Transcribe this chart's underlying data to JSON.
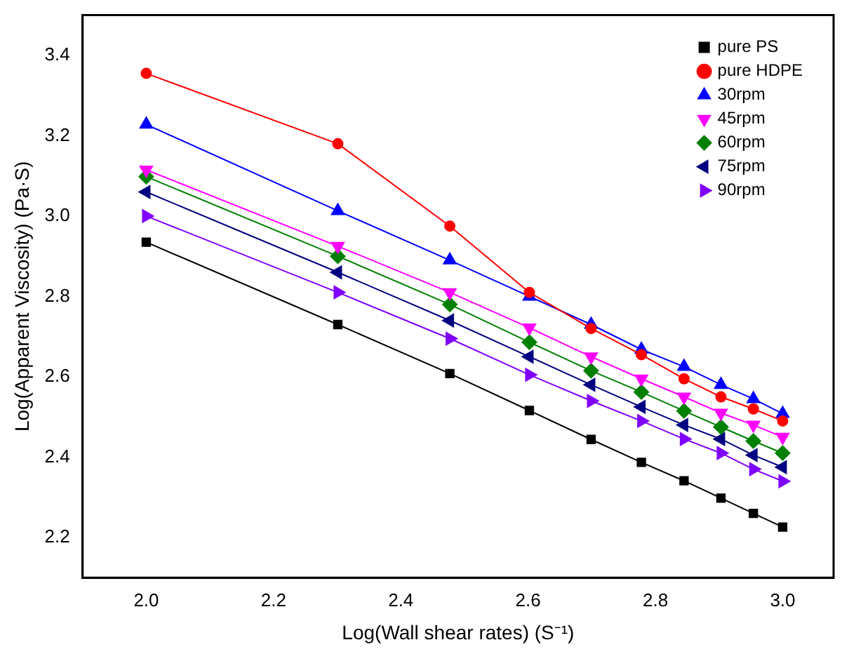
{
  "chart_data": {
    "type": "line",
    "xlabel": "Log(Wall shear rates) (S⁻¹)",
    "ylabel": "Log(Apparent Viscosity) (Pa·S)",
    "x": [
      2.0,
      2.301,
      2.477,
      2.602,
      2.699,
      2.778,
      2.845,
      2.903,
      2.954,
      3.0
    ],
    "xlim": [
      1.9,
      3.08
    ],
    "xticks": [
      {
        "value": 2,
        "label": "2.0"
      },
      2.2,
      2.4,
      2.6,
      2.8,
      {
        "value": 3,
        "label": "3.0"
      }
    ],
    "ylim": [
      2.1,
      3.5
    ],
    "yticks": [
      2.2,
      2.4,
      2.6,
      2.8,
      {
        "value": 3,
        "label": "3.0"
      },
      3.2,
      3.4
    ],
    "grid": false,
    "legend": "top right",
    "line_style": "solid",
    "series": [
      {
        "name": "pure PS",
        "color": "#000000",
        "marker": "square",
        "values": [
          2.935,
          2.73,
          2.608,
          2.516,
          2.444,
          2.387,
          2.341,
          2.298,
          2.26,
          2.226
        ]
      },
      {
        "name": "pure HDPE",
        "color": "#ff0000",
        "marker": "circle",
        "values": [
          3.355,
          3.18,
          2.975,
          2.81,
          2.72,
          2.655,
          2.595,
          2.55,
          2.52,
          2.49
        ]
      },
      {
        "name": "30rpm",
        "color": "#0000ff",
        "marker": "triangle",
        "values": [
          3.228,
          3.013,
          2.89,
          2.8,
          2.73,
          2.668,
          2.625,
          2.58,
          2.545,
          2.508
        ]
      },
      {
        "name": "45rpm",
        "color": "#ff00ff",
        "marker": "triangle-down",
        "values": [
          3.115,
          2.925,
          2.81,
          2.722,
          2.65,
          2.595,
          2.55,
          2.51,
          2.48,
          2.45
        ]
      },
      {
        "name": "60rpm",
        "color": "#008000",
        "marker": "diamond",
        "values": [
          3.098,
          2.9,
          2.78,
          2.686,
          2.615,
          2.562,
          2.515,
          2.475,
          2.44,
          2.41
        ]
      },
      {
        "name": "75rpm",
        "color": "#000080",
        "marker": "triangle-left",
        "values": [
          3.06,
          2.86,
          2.74,
          2.65,
          2.58,
          2.525,
          2.48,
          2.445,
          2.405,
          2.375
        ]
      },
      {
        "name": "90rpm",
        "color": "#8000ff",
        "marker": "triangle-right",
        "values": [
          3.0,
          2.81,
          2.695,
          2.605,
          2.54,
          2.49,
          2.445,
          2.41,
          2.37,
          2.34
        ]
      }
    ]
  }
}
